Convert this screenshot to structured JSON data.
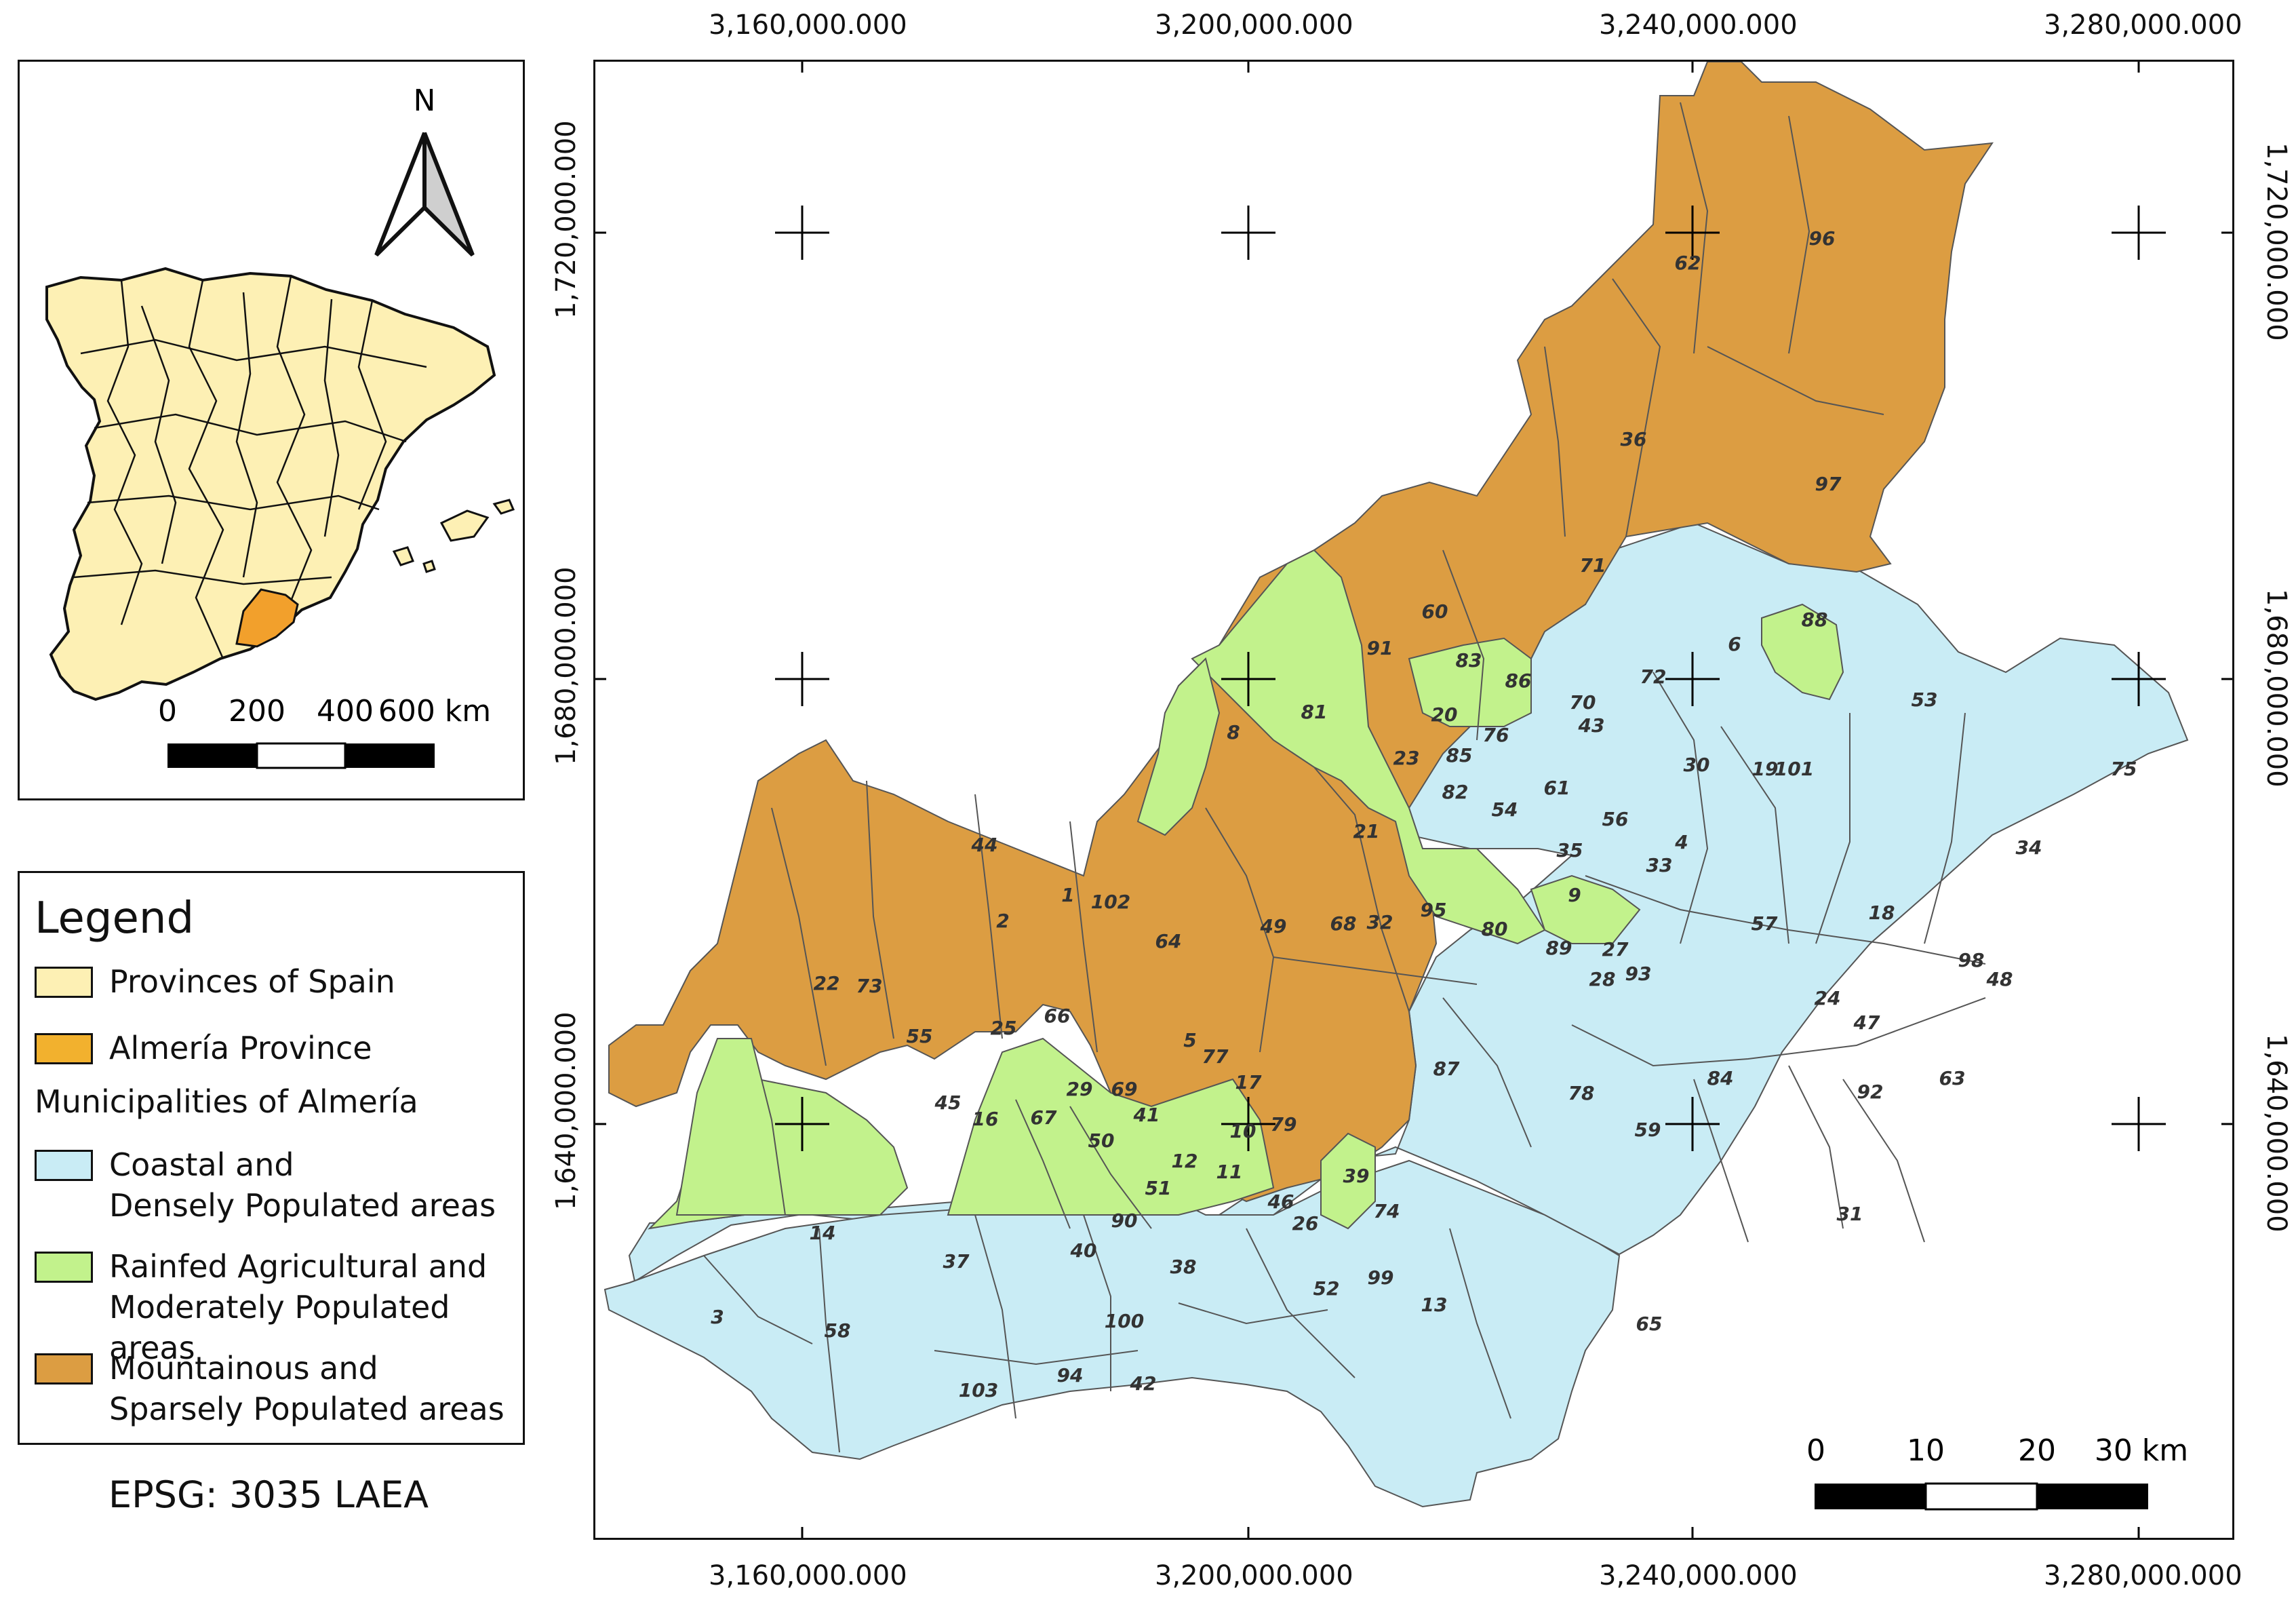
{
  "inset": {
    "north_label": "N",
    "scale": {
      "labels": [
        "0",
        "200",
        "400",
        "600 km"
      ]
    }
  },
  "legend": {
    "title": "Legend",
    "items": [
      {
        "label": "Provinces of Spain",
        "color": "#fdf0b4"
      },
      {
        "label": "Almería Province",
        "color": "#f2b12e"
      }
    ],
    "subheading": "Municipalities of Almería",
    "classes": [
      {
        "lines": [
          "Coastal and",
          "Densely Populated areas"
        ],
        "color": "#c9ecf5"
      },
      {
        "lines": [
          "Rainfed Agricultural and",
          "Moderately Populated areas"
        ],
        "color": "#c2f28c"
      },
      {
        "lines": [
          "Mountainous and",
          "Sparsely Populated areas"
        ],
        "color": "#dc9d42"
      }
    ]
  },
  "crs_label": "EPSG: 3035 LAEA",
  "map": {
    "x_ticks": [
      "3,160,000.000",
      "3,200,000.000",
      "3,240,000.000",
      "3,280,000.000"
    ],
    "y_ticks": [
      "1,720,000.000",
      "1,680,000.000",
      "1,640,000.000"
    ],
    "scale": {
      "labels": [
        "0",
        "10",
        "20",
        "30 km"
      ]
    },
    "municipality_numbers": {
      "mountainous": [
        "1",
        "2",
        "4",
        "5",
        "9",
        "20",
        "21",
        "22",
        "23",
        "25",
        "27",
        "28",
        "32",
        "36",
        "44",
        "49",
        "54",
        "59",
        "60",
        "62",
        "64",
        "66",
        "67",
        "68",
        "71",
        "77",
        "78",
        "80",
        "81",
        "83",
        "86",
        "87",
        "89",
        "93",
        "95",
        "96",
        "97",
        "102"
      ],
      "rainfed": [
        "8",
        "10",
        "11",
        "12",
        "16",
        "17",
        "29",
        "33",
        "35",
        "39",
        "41",
        "43",
        "45",
        "50",
        "51",
        "55",
        "56",
        "61",
        "69",
        "70",
        "72",
        "73",
        "76",
        "79",
        "82",
        "85",
        "88",
        "91"
      ],
      "coastal": [
        "3",
        "6",
        "13",
        "14",
        "18",
        "19",
        "24",
        "26",
        "30",
        "31",
        "34",
        "37",
        "38",
        "40",
        "42",
        "46",
        "47",
        "48",
        "52",
        "53",
        "57",
        "58",
        "63",
        "65",
        "74",
        "75",
        "84",
        "90",
        "92",
        "94",
        "98",
        "99",
        "100",
        "101",
        "103"
      ]
    }
  }
}
